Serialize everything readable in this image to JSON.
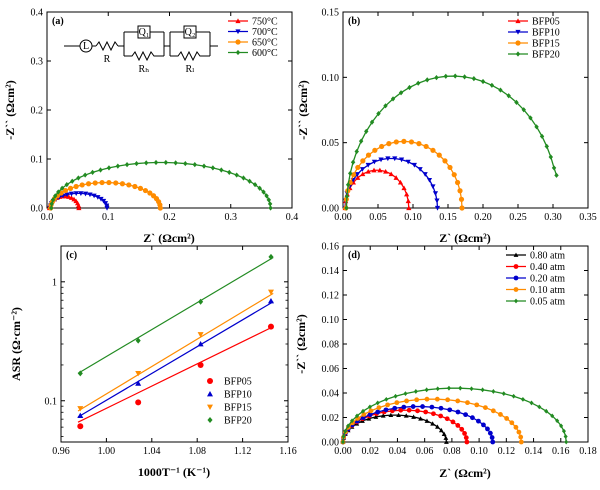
{
  "chart_data": [
    {
      "id": "a",
      "panel_label": "(a)",
      "type": "scatter",
      "xlabel": "Z` (Ωcm²)",
      "ylabel": "-Z`` (Ωcm²)",
      "xlim": [
        0,
        0.4
      ],
      "ylim": [
        0,
        0.4
      ],
      "xticks": [
        0,
        0.1,
        0.2,
        0.3,
        0.4
      ],
      "xtick_labels": [
        "0.0",
        "0.1",
        "0.2",
        "0.3",
        "0.4"
      ],
      "yticks": [
        0,
        0.1,
        0.2,
        0.3,
        0.4
      ],
      "ytick_labels": [
        "0.0",
        "0.1",
        "0.2",
        "0.3",
        "0.4"
      ],
      "legend_position": "top-right",
      "circuit_labels": [
        "L",
        "R",
        "Q₁",
        "Rₕ",
        "Q₂",
        "Rₗ"
      ],
      "series": [
        {
          "name": "750°C",
          "color": "#ff0000",
          "marker": "triangle-up",
          "r0": 0.004,
          "r1": 0.052,
          "peak": 0.024,
          "points": 16
        },
        {
          "name": "700°C",
          "color": "#0000cc",
          "marker": "triangle-down",
          "r0": 0.005,
          "r1": 0.098,
          "peak": 0.03,
          "points": 20
        },
        {
          "name": "650°C",
          "color": "#ff8c00",
          "marker": "circle",
          "r0": 0.006,
          "r1": 0.185,
          "peak": 0.052,
          "points": 26
        },
        {
          "name": "600°C",
          "color": "#228b22",
          "marker": "diamond",
          "r0": 0.007,
          "r1": 0.365,
          "peak": 0.093,
          "points": 36
        }
      ]
    },
    {
      "id": "b",
      "panel_label": "(b)",
      "type": "scatter",
      "xlabel": "Z` (Ωcm²)",
      "ylabel": "-Z`` (Ωcm²)",
      "xlim": [
        0,
        0.35
      ],
      "ylim": [
        0,
        0.15
      ],
      "xticks": [
        0,
        0.05,
        0.1,
        0.15,
        0.2,
        0.25,
        0.3,
        0.35
      ],
      "xtick_labels": [
        "0.00",
        "0.05",
        "0.10",
        "0.15",
        "0.20",
        "0.25",
        "0.30",
        "0.35"
      ],
      "yticks": [
        0,
        0.05,
        0.1,
        0.15
      ],
      "ytick_labels": [
        "0.00",
        "0.05",
        "0.10",
        "0.15"
      ],
      "legend_position": "top-right",
      "series": [
        {
          "name": "BFP05",
          "color": "#ff0000",
          "marker": "triangle-up",
          "r0": 0.003,
          "r1": 0.094,
          "peak": 0.029,
          "points": 18
        },
        {
          "name": "BFP10",
          "color": "#0000cc",
          "marker": "triangle-down",
          "r0": 0.003,
          "r1": 0.135,
          "peak": 0.038,
          "points": 22
        },
        {
          "name": "BFP15",
          "color": "#ff8c00",
          "marker": "circle",
          "r0": 0.004,
          "r1": 0.17,
          "peak": 0.051,
          "points": 25
        },
        {
          "name": "BFP20",
          "color": "#228b22",
          "marker": "diamond",
          "r0": 0.005,
          "r1": 0.305,
          "peak": 0.101,
          "shape": 0.22,
          "end_y": 0.025,
          "points": 34
        }
      ]
    },
    {
      "id": "c",
      "panel_label": "(c)",
      "type": "scatter",
      "scale_y": "log",
      "xlabel": "1000T⁻¹ (K⁻¹)",
      "ylabel": "ASR (Ω·cm⁻²)",
      "xlim": [
        0.96,
        1.16
      ],
      "ylim": [
        0.045,
        2.0
      ],
      "xticks": [
        0.96,
        1.0,
        1.04,
        1.08,
        1.12,
        1.16
      ],
      "xtick_labels": [
        "0.96",
        "1.00",
        "1.04",
        "1.08",
        "1.12",
        "1.16"
      ],
      "yticks": [
        0.1,
        1
      ],
      "ytick_labels": [
        "0.1",
        "1"
      ],
      "legend_position": "bottom-right",
      "x": [
        0.977,
        1.028,
        1.083,
        1.145
      ],
      "series": [
        {
          "name": "BFP05",
          "color": "#ff0000",
          "marker": "circle",
          "values": [
            0.061,
            0.097,
            0.2,
            0.42
          ],
          "fit": [
            0.066,
            0.42
          ]
        },
        {
          "name": "BFP10",
          "color": "#0000cc",
          "marker": "triangle-up",
          "values": [
            0.075,
            0.14,
            0.3,
            0.69
          ],
          "fit": [
            0.073,
            0.68
          ]
        },
        {
          "name": "BFP15",
          "color": "#ff8c00",
          "marker": "triangle-down",
          "values": [
            0.086,
            0.17,
            0.36,
            0.82
          ],
          "fit": [
            0.082,
            0.8
          ]
        },
        {
          "name": "BFP20",
          "color": "#228b22",
          "marker": "diamond",
          "values": [
            0.17,
            0.32,
            0.68,
            1.62
          ],
          "fit": [
            0.17,
            1.6
          ]
        }
      ]
    },
    {
      "id": "d",
      "panel_label": "(d)",
      "type": "scatter",
      "xlabel": "Z` (Ωcm²)",
      "ylabel": "-Z`` (Ωcm²)",
      "xlim": [
        0,
        0.18
      ],
      "ylim": [
        0,
        0.16
      ],
      "xticks": [
        0,
        0.02,
        0.04,
        0.06,
        0.08,
        0.1,
        0.12,
        0.14,
        0.16,
        0.18
      ],
      "xtick_labels": [
        "0.00",
        "0.02",
        "0.04",
        "0.06",
        "0.08",
        "0.10",
        "0.12",
        "0.14",
        "0.16",
        "0.18"
      ],
      "yticks": [
        0,
        0.02,
        0.04,
        0.06,
        0.08,
        0.1,
        0.12,
        0.14,
        0.16
      ],
      "ytick_labels": [
        "0.00",
        "0.02",
        "0.04",
        "0.06",
        "0.08",
        "0.10",
        "0.12",
        "0.14",
        "0.16"
      ],
      "legend_position": "top-right",
      "series": [
        {
          "name": "0.80 atm",
          "color": "#000000",
          "marker": "triangle-up",
          "r0": 0.0,
          "r1": 0.076,
          "peak": 0.022,
          "points": 22
        },
        {
          "name": "0.40 atm",
          "color": "#ff0000",
          "marker": "circle",
          "r0": 0.0,
          "r1": 0.091,
          "peak": 0.026,
          "points": 24
        },
        {
          "name": "0.20 atm",
          "color": "#0000cc",
          "marker": "circle",
          "r0": 0.0,
          "r1": 0.11,
          "peak": 0.029,
          "points": 26
        },
        {
          "name": "0.10 atm",
          "color": "#ff8c00",
          "marker": "circle",
          "r0": 0.0,
          "r1": 0.131,
          "peak": 0.035,
          "points": 28
        },
        {
          "name": "0.05 atm",
          "color": "#228b22",
          "marker": "diamond",
          "r0": 0.0,
          "r1": 0.164,
          "peak": 0.044,
          "points": 32
        }
      ]
    }
  ]
}
